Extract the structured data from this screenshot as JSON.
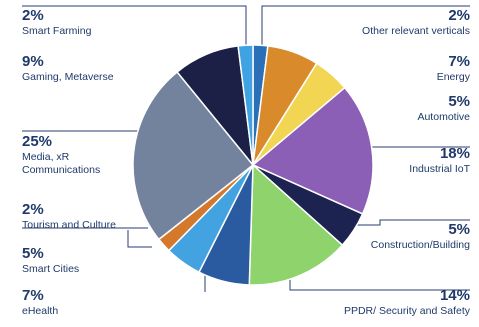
{
  "chart_data": {
    "type": "pie",
    "title": "",
    "series": [
      {
        "name": "",
        "slices": [
          {
            "label": "Other relevant verticals",
            "value": 2,
            "value_label": "2%",
            "color": "#2b6fb8"
          },
          {
            "label": "Energy",
            "value": 7,
            "value_label": "7%",
            "color": "#d98a2b"
          },
          {
            "label": "Automotive",
            "value": 5,
            "value_label": "5%",
            "color": "#f2d552"
          },
          {
            "label": "Industrial IoT",
            "value": 18,
            "value_label": "18%",
            "color": "#8a5fb5"
          },
          {
            "label": "Construction/Building",
            "value": 5,
            "value_label": "5%",
            "color": "#1c2350"
          },
          {
            "label": "PPDR/ Security and Safety",
            "value": 14,
            "value_label": "14%",
            "color": "#8ed36b"
          },
          {
            "label": "eHealth",
            "value": 7,
            "value_label": "7%",
            "color": "#2a5a9f"
          },
          {
            "label": "Smart Cities",
            "value": 5,
            "value_label": "5%",
            "color": "#42a3e0"
          },
          {
            "label": "Tourism and Culture",
            "value": 2,
            "value_label": "2%",
            "color": "#d4782b"
          },
          {
            "label": "Media, xR Communications",
            "value": 25,
            "value_label": "25%",
            "color": "#73839e"
          },
          {
            "label": "Gaming, Metaverse",
            "value": 9,
            "value_label": "9%",
            "color": "#1c2046"
          },
          {
            "label": "Smart Farming",
            "value": 2,
            "value_label": "2%",
            "color": "#3fa2e3"
          }
        ]
      }
    ],
    "legend": "callout labels around the pie"
  },
  "labels": {
    "left": [
      {
        "pct": "2%",
        "lines": [
          "Smart Farming"
        ]
      },
      {
        "pct": "9%",
        "lines": [
          "Gaming, Metaverse"
        ]
      },
      {
        "pct": "25%",
        "lines": [
          "Media, xR",
          "Communications"
        ]
      },
      {
        "pct": "2%",
        "lines": [
          "Tourism and Culture"
        ]
      },
      {
        "pct": "5%",
        "lines": [
          "Smart Cities"
        ]
      },
      {
        "pct": "7%",
        "lines": [
          "eHealth"
        ]
      }
    ],
    "right": [
      {
        "pct": "2%",
        "lines": [
          "Other relevant verticals"
        ]
      },
      {
        "pct": "7%",
        "lines": [
          "Energy"
        ]
      },
      {
        "pct": "5%",
        "lines": [
          "Automotive"
        ]
      },
      {
        "pct": "18%",
        "lines": [
          "Industrial IoT"
        ]
      },
      {
        "pct": "5%",
        "lines": [
          "Construction/Building"
        ]
      },
      {
        "pct": "14%",
        "lines": [
          "PPDR/ Security and Safety"
        ]
      }
    ]
  }
}
